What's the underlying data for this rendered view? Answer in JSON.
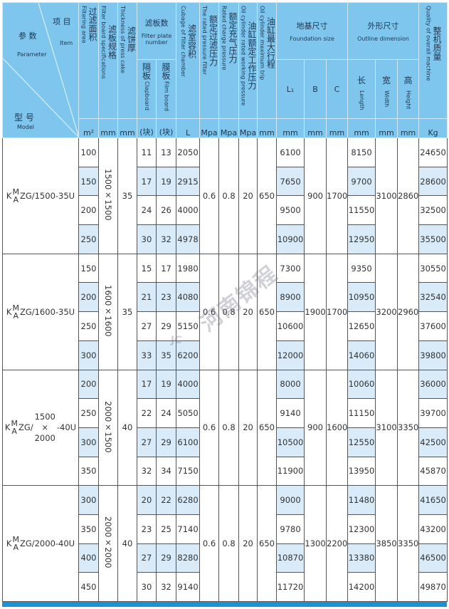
{
  "header": {
    "parameter_zh": "参 数",
    "parameter_en": "Parameter",
    "item_zh": "项 目",
    "item_en": "Item",
    "model_zh": "型 号",
    "model_en": "Model",
    "columns": {
      "area": {
        "zh": "过滤面积",
        "en": "Filtering area",
        "unit": "m²"
      },
      "spec": {
        "zh": "滤板规格",
        "en": "Filter board specifications",
        "unit": "mm"
      },
      "thickness": {
        "zh": "滤饼厚",
        "en": "Thickness of press cake",
        "unit": "mm"
      },
      "plates": {
        "zh": "滤板数",
        "en": "Filter plate number"
      },
      "clapboard": {
        "zh": "隔板",
        "en": "Clapboard",
        "unit": "(块)"
      },
      "film": {
        "zh": "膜板",
        "en": "Film board",
        "unit": "(块)"
      },
      "volume": {
        "zh": "滤室容积",
        "en": "Cubage of filter chamber",
        "unit": "L"
      },
      "filter_pressure": {
        "zh": "额定过滤压力",
        "en": "The rated pressure filter",
        "unit": "Mpa"
      },
      "charge_pressure": {
        "zh": "额定充气压力",
        "en": "Rated charge pressure",
        "unit": "Mpa"
      },
      "working_pressure": {
        "zh": "油缸额定工作压力",
        "en": "Oil cylinder rated working pressure",
        "unit": "Mpa"
      },
      "trip": {
        "zh": "油缸最大行程",
        "en": "Oil cylinder maximum trip",
        "unit": "mm"
      },
      "foundation": {
        "zh": "地基尺寸",
        "en": "Foundation size"
      },
      "l1": {
        "label": "L₁",
        "unit": "mm"
      },
      "b": {
        "label": "B",
        "unit": "mm"
      },
      "c": {
        "label": "C",
        "unit": "mm"
      },
      "outline": {
        "zh": "外形尺寸",
        "en": "Outline dimension"
      },
      "length": {
        "zh": "长",
        "en": "Length",
        "unit": "mm"
      },
      "width": {
        "zh": "宽",
        "en": "Width",
        "unit": "mm"
      },
      "height": {
        "zh": "高",
        "en": "Height",
        "unit": "mm"
      },
      "weight": {
        "zh": "整机质量",
        "en": "Quality of overall machine",
        "unit": "Kg"
      }
    }
  },
  "groups": [
    {
      "model_prefix": "K",
      "model_sup": "M",
      "model_sub": "A",
      "model_suffix": "ZG/1500-35U",
      "spec": "1500×1500",
      "thickness": "35",
      "filter_pressure": "0.6",
      "charge_pressure": "0.8",
      "working_pressure": "20",
      "trip": "650",
      "b": "900",
      "c": "1700",
      "width": "3100",
      "height": "2860",
      "shaded_rows": [
        1,
        3
      ],
      "rows": [
        {
          "area": "100",
          "clapboard": "11",
          "film": "13",
          "volume": "2050",
          "l1": "6100",
          "length": "8150",
          "weight": "24650"
        },
        {
          "area": "150",
          "clapboard": "17",
          "film": "19",
          "volume": "2915",
          "l1": "7650",
          "length": "9700",
          "weight": "28600"
        },
        {
          "area": "200",
          "clapboard": "24",
          "film": "26",
          "volume": "4000",
          "l1": "9500",
          "length": "11550",
          "weight": "32500"
        },
        {
          "area": "250",
          "clapboard": "30",
          "film": "32",
          "volume": "4978",
          "l1": "10900",
          "length": "12950",
          "weight": "35500"
        }
      ]
    },
    {
      "model_prefix": "K",
      "model_sup": "M",
      "model_sub": "A",
      "model_suffix": "ZG/1600-35U",
      "spec": "1600×1600",
      "thickness": "35",
      "filter_pressure": "0.6",
      "charge_pressure": "0.8",
      "working_pressure": "20",
      "trip": "650",
      "b": "1900",
      "c": "1700",
      "width": "3200",
      "height": "2960",
      "shaded_rows": [
        1,
        3
      ],
      "rows": [
        {
          "area": "150",
          "clapboard": "15",
          "film": "17",
          "volume": "1980",
          "l1": "7300",
          "length": "9350",
          "weight": "30550"
        },
        {
          "area": "200",
          "clapboard": "21",
          "film": "23",
          "volume": "4080",
          "l1": "8900",
          "length": "10950",
          "weight": "32540"
        },
        {
          "area": "250",
          "clapboard": "27",
          "film": "29",
          "volume": "5150",
          "l1": "10600",
          "length": "12650",
          "weight": "37600"
        },
        {
          "area": "300",
          "clapboard": "33",
          "film": "35",
          "volume": "6200",
          "l1": "12000",
          "length": "14060",
          "weight": "39800"
        }
      ]
    },
    {
      "model_prefix": "K",
      "model_sup": "M",
      "model_sub": "A",
      "model_mid": "ZG/",
      "model_frac_top": "1500",
      "model_frac_mid": "×",
      "model_frac_bottom": "2000",
      "model_suffix": "-40U",
      "spec": "2000×1500",
      "thickness": "40",
      "filter_pressure": "0.6",
      "charge_pressure": "0.8",
      "working_pressure": "20",
      "trip": "650",
      "b": "900",
      "c": "1600",
      "width": "3100",
      "height": "3350",
      "shaded_rows": [
        0,
        2
      ],
      "rows": [
        {
          "area": "200",
          "clapboard": "17",
          "film": "19",
          "volume": "4000",
          "l1": "8000",
          "length": "10060",
          "weight": "36000"
        },
        {
          "area": "250",
          "clapboard": "22",
          "film": "24",
          "volume": "5050",
          "l1": "9140",
          "length": "11150",
          "weight": "39700"
        },
        {
          "area": "300",
          "clapboard": "27",
          "film": "29",
          "volume": "6100",
          "l1": "10500",
          "length": "12550",
          "weight": "42500"
        },
        {
          "area": "350",
          "clapboard": "32",
          "film": "34",
          "volume": "7150",
          "l1": "11900",
          "length": "13950",
          "weight": "45870"
        }
      ]
    },
    {
      "model_prefix": "K",
      "model_sup": "M",
      "model_sub": "A",
      "model_suffix": "ZG/2000-40U",
      "spec": "2000×2000",
      "thickness": "40",
      "filter_pressure": "0.6",
      "charge_pressure": "0.8",
      "working_pressure": "20",
      "trip": "650",
      "b": "1300",
      "c": "2200",
      "width": "3850",
      "height": "3350",
      "shaded_rows": [
        0,
        2
      ],
      "rows": [
        {
          "area": "300",
          "clapboard": "20",
          "film": "22",
          "volume": "6280",
          "l1": "9000",
          "length": "11480",
          "weight": "41650"
        },
        {
          "area": "350",
          "clapboard": "23",
          "film": "25",
          "volume": "7140",
          "l1": "9780",
          "length": "12300",
          "weight": "43200"
        },
        {
          "area": "400",
          "clapboard": "27",
          "film": "29",
          "volume": "8280",
          "l1": "10870",
          "length": "13380",
          "weight": "46500"
        },
        {
          "area": "450",
          "clapboard": "30",
          "film": "32",
          "volume": "9140",
          "l1": "11720",
          "length": "14200",
          "weight": "49870"
        }
      ]
    }
  ],
  "watermark": {
    "text": "河南锦程",
    "logo": "JC"
  },
  "colors": {
    "header_bg": "#7fc6ee",
    "shaded_cell": "#d9ebf9",
    "bottom_bar": "#1a93d4"
  }
}
